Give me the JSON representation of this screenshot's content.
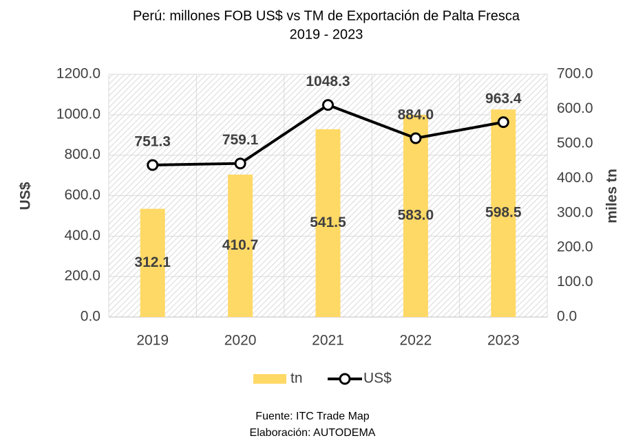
{
  "chart_data": {
    "type": "bar",
    "title": "Perú: millones FOB US$ vs TM de Exportación de Palta Fresca",
    "subtitle": "2019 - 2023",
    "categories": [
      "2019",
      "2020",
      "2021",
      "2022",
      "2023"
    ],
    "series": [
      {
        "name": "tn",
        "type": "bar",
        "axis": "y2",
        "color": "#ffd966",
        "values": [
          312.1,
          410.7,
          541.5,
          583.0,
          598.5
        ],
        "value_labels": [
          "312.1",
          "410.7",
          "541.5",
          "583.0",
          "598.5"
        ]
      },
      {
        "name": "US$",
        "type": "line",
        "axis": "y",
        "color": "#000000",
        "values": [
          751.3,
          759.1,
          1048.3,
          884.0,
          963.4
        ],
        "value_labels": [
          "751.3",
          "759.1",
          "1048.3",
          "884.0",
          "963.4"
        ]
      }
    ],
    "ylabel": "US$",
    "y2label": "miles tn",
    "ylim": [
      0,
      1200
    ],
    "yticks": [
      {
        "value": 0,
        "label": "0.0"
      },
      {
        "value": 200,
        "label": "200.0"
      },
      {
        "value": 400,
        "label": "400.0"
      },
      {
        "value": 600,
        "label": "600.0"
      },
      {
        "value": 800,
        "label": "800.0"
      },
      {
        "value": 1000,
        "label": "1000.0"
      },
      {
        "value": 1200,
        "label": "1200.0"
      }
    ],
    "y2lim": [
      0,
      700
    ],
    "y2ticks": [
      {
        "value": 0,
        "label": "0.0"
      },
      {
        "value": 100,
        "label": "100.0"
      },
      {
        "value": 200,
        "label": "200.0"
      },
      {
        "value": 300,
        "label": "300.0"
      },
      {
        "value": 400,
        "label": "400.0"
      },
      {
        "value": 500,
        "label": "500.0"
      },
      {
        "value": 600,
        "label": "600.0"
      },
      {
        "value": 700,
        "label": "700.0"
      }
    ],
    "grid": true,
    "legend": "bottom",
    "notes": [
      "Fuente: ITC Trade Map",
      "Elaboración: AUTODEMA"
    ]
  }
}
